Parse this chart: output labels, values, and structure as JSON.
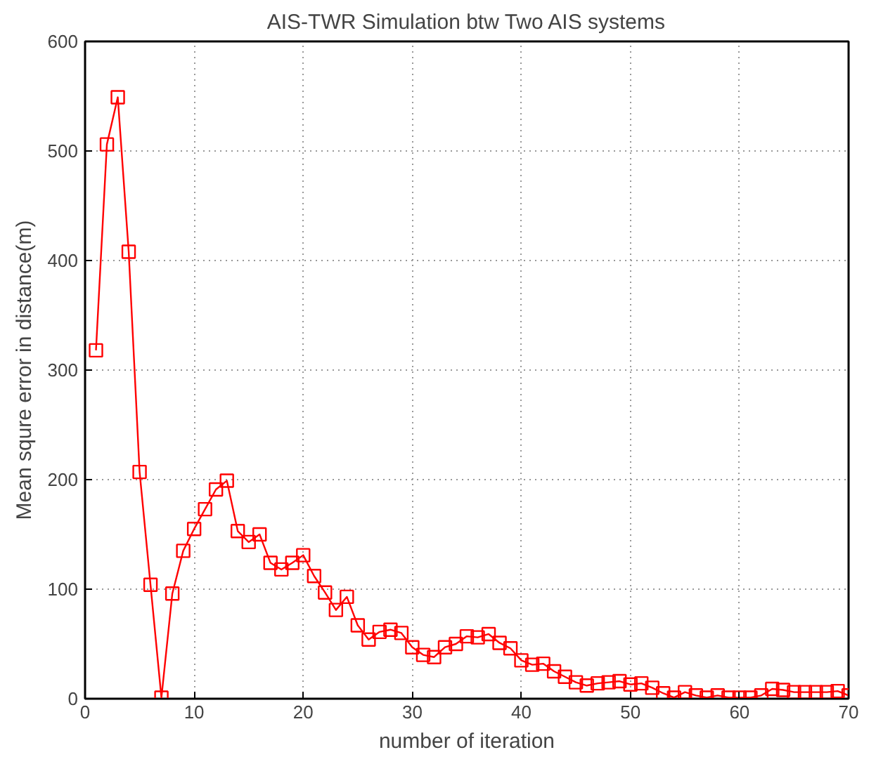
{
  "chart_data": {
    "type": "line",
    "title": "AIS-TWR Simulation btw Two AIS systems",
    "xlabel": "number of iteration",
    "ylabel": "Mean squre error in distance(m)",
    "x": [
      1,
      2,
      3,
      4,
      5,
      6,
      7,
      8,
      9,
      10,
      11,
      12,
      13,
      14,
      15,
      16,
      17,
      18,
      19,
      20,
      21,
      22,
      23,
      24,
      25,
      26,
      27,
      28,
      29,
      30,
      31,
      32,
      33,
      34,
      35,
      36,
      37,
      38,
      39,
      40,
      41,
      42,
      43,
      44,
      45,
      46,
      47,
      48,
      49,
      50,
      51,
      52,
      53,
      54,
      55,
      56,
      57,
      58,
      59,
      60,
      61,
      62,
      63,
      64,
      65,
      66,
      67,
      68,
      69,
      70
    ],
    "series": [
      {
        "color": "#ff0000",
        "values": [
          318,
          506,
          549,
          408,
          207,
          104,
          1,
          96,
          135,
          155,
          173,
          191,
          199,
          153,
          143,
          150,
          124,
          118,
          124,
          131,
          112,
          97,
          81,
          93,
          67,
          54,
          61,
          63,
          60,
          47,
          40,
          38,
          47,
          50,
          57,
          56,
          59,
          51,
          46,
          35,
          31,
          32,
          25,
          20,
          15,
          12,
          14,
          15,
          16,
          13,
          14,
          10,
          5,
          1,
          6,
          3,
          1,
          3,
          1,
          1,
          1,
          3,
          9,
          8,
          6,
          6,
          6,
          6,
          7,
          3
        ]
      }
    ],
    "xlim": [
      0,
      70
    ],
    "ylim": [
      0,
      600
    ],
    "xticks": [
      0,
      10,
      20,
      30,
      40,
      50,
      60,
      70
    ],
    "yticks": [
      0,
      100,
      200,
      300,
      400,
      500,
      600
    ],
    "grid": true,
    "marker": "square",
    "line_style": "solid"
  }
}
